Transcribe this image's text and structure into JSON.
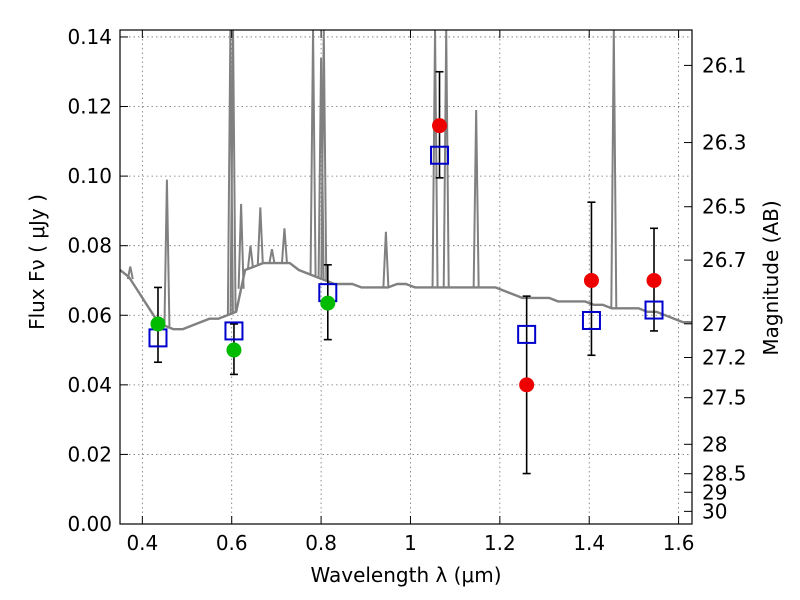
{
  "chart_data": {
    "type": "scatter",
    "xlabel": "Wavelength  λ (μm)",
    "ylabel": "Flux  Fν  ( μJy )",
    "y2label": "Magnitude (AB)",
    "xlim": [
      0.35,
      1.63
    ],
    "ylim": [
      0.0,
      0.142
    ],
    "grid": true,
    "x_ticks": [
      0.4,
      0.6,
      0.8,
      1.0,
      1.2,
      1.4,
      1.6
    ],
    "x_tick_labels": [
      "0.4",
      "0.6",
      "0.8",
      "1",
      "1.2",
      "1.4",
      "1.6"
    ],
    "y_ticks": [
      0.0,
      0.02,
      0.04,
      0.06,
      0.08,
      0.1,
      0.12,
      0.14
    ],
    "y_tick_labels": [
      "0.00",
      "0.02",
      "0.04",
      "0.06",
      "0.08",
      "0.10",
      "0.12",
      "0.14"
    ],
    "y2_tick_labels": [
      "26.1",
      "26.3",
      "26.5",
      "26.7",
      "27",
      "27.2",
      "27.5",
      "28",
      "28.5",
      "29",
      "30"
    ],
    "colors": {
      "model": "#808080",
      "model_mag": "#0000cc",
      "detection": "#00bb00",
      "observed": "#ee0000",
      "errorbar": "#000000"
    },
    "series": [
      {
        "kind": "model_spectrum",
        "x": [
          0.35,
          0.37,
          0.39,
          0.41,
          0.43,
          0.45,
          0.47,
          0.49,
          0.51,
          0.53,
          0.55,
          0.57,
          0.59,
          0.61,
          0.63,
          0.65,
          0.67,
          0.69,
          0.71,
          0.73,
          0.75,
          0.77,
          0.79,
          0.81,
          0.83,
          0.85,
          0.87,
          0.89,
          0.91,
          0.93,
          0.95,
          0.97,
          0.99,
          1.01,
          1.03,
          1.05,
          1.07,
          1.09,
          1.11,
          1.13,
          1.15,
          1.17,
          1.19,
          1.21,
          1.23,
          1.25,
          1.27,
          1.29,
          1.31,
          1.33,
          1.35,
          1.37,
          1.39,
          1.41,
          1.43,
          1.45,
          1.47,
          1.49,
          1.51,
          1.53,
          1.55,
          1.57,
          1.59,
          1.61,
          1.63
        ],
        "y": [
          0.073,
          0.071,
          0.067,
          0.063,
          0.059,
          0.057,
          0.056,
          0.056,
          0.057,
          0.058,
          0.059,
          0.059,
          0.06,
          0.061,
          0.073,
          0.074,
          0.075,
          0.075,
          0.075,
          0.075,
          0.073,
          0.072,
          0.071,
          0.07,
          0.069,
          0.069,
          0.069,
          0.068,
          0.068,
          0.068,
          0.068,
          0.069,
          0.069,
          0.068,
          0.068,
          0.068,
          0.068,
          0.068,
          0.068,
          0.068,
          0.068,
          0.068,
          0.068,
          0.067,
          0.066,
          0.065,
          0.065,
          0.065,
          0.065,
          0.064,
          0.064,
          0.064,
          0.064,
          0.063,
          0.063,
          0.062,
          0.062,
          0.062,
          0.062,
          0.061,
          0.061,
          0.06,
          0.059,
          0.058,
          0.058
        ]
      },
      {
        "kind": "emission_lines",
        "lines": [
          {
            "x": 0.373,
            "peak": 0.074
          },
          {
            "x": 0.455,
            "peak": 0.099
          },
          {
            "x": 0.597,
            "peak": 0.142
          },
          {
            "x": 0.603,
            "peak": 0.142
          },
          {
            "x": 0.621,
            "peak": 0.092
          },
          {
            "x": 0.642,
            "peak": 0.08
          },
          {
            "x": 0.664,
            "peak": 0.091
          },
          {
            "x": 0.69,
            "peak": 0.079
          },
          {
            "x": 0.718,
            "peak": 0.085
          },
          {
            "x": 0.782,
            "peak": 0.142
          },
          {
            "x": 0.8,
            "peak": 0.134
          },
          {
            "x": 0.806,
            "peak": 0.142
          },
          {
            "x": 0.945,
            "peak": 0.084
          },
          {
            "x": 1.055,
            "peak": 0.142
          },
          {
            "x": 1.08,
            "peak": 0.142
          },
          {
            "x": 1.147,
            "peak": 0.119
          },
          {
            "x": 1.455,
            "peak": 0.142
          }
        ]
      },
      {
        "kind": "model_mag",
        "name": "",
        "x": [
          0.435,
          0.605,
          0.815,
          1.065,
          1.26,
          1.405,
          1.545
        ],
        "y": [
          0.0535,
          0.0555,
          0.0665,
          0.106,
          0.0545,
          0.0585,
          0.0615
        ]
      },
      {
        "kind": "detection",
        "name": "",
        "x": [
          0.435,
          0.605,
          0.815
        ],
        "y": [
          0.0575,
          0.05,
          0.0635
        ],
        "err_low": [
          0.0465,
          0.043,
          0.053
        ],
        "err_high": [
          0.068,
          0.0575,
          0.0745
        ]
      },
      {
        "kind": "observed",
        "name": "",
        "x": [
          1.065,
          1.26,
          1.405,
          1.545
        ],
        "y": [
          0.1145,
          0.04,
          0.07,
          0.07
        ],
        "err_low": [
          0.0995,
          0.0145,
          0.0485,
          0.0555
        ],
        "err_high": [
          0.13,
          0.0655,
          0.0925,
          0.085
        ]
      }
    ]
  }
}
